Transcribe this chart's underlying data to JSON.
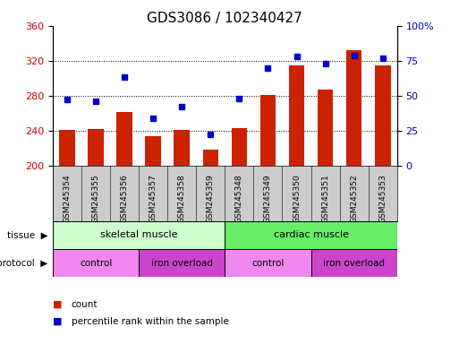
{
  "title": "GDS3086 / 102340427",
  "samples": [
    "GSM245354",
    "GSM245355",
    "GSM245356",
    "GSM245357",
    "GSM245358",
    "GSM245359",
    "GSM245348",
    "GSM245349",
    "GSM245350",
    "GSM245351",
    "GSM245352",
    "GSM245353"
  ],
  "counts": [
    241,
    242,
    261,
    233,
    241,
    218,
    243,
    281,
    315,
    287,
    332,
    315
  ],
  "percentiles": [
    47,
    46,
    63,
    34,
    42,
    22,
    48,
    70,
    78,
    73,
    79,
    77
  ],
  "bar_color": "#cc2200",
  "dot_color": "#0000cc",
  "left_ylim": [
    200,
    360
  ],
  "right_ylim": [
    0,
    100
  ],
  "left_yticks": [
    200,
    240,
    280,
    320,
    360
  ],
  "right_yticks": [
    0,
    25,
    50,
    75,
    100
  ],
  "right_yticklabels": [
    "0",
    "25",
    "50",
    "75",
    "100%"
  ],
  "tissue_labels": [
    "skeletal muscle",
    "cardiac muscle"
  ],
  "tissue_color_skel": "#ccffcc",
  "tissue_color_card": "#66ee66",
  "protocol_labels": [
    "control",
    "iron overload",
    "control",
    "iron overload"
  ],
  "protocol_ranges": [
    0,
    3,
    6,
    9,
    12
  ],
  "protocol_color_1": "#ee88ee",
  "protocol_color_2": "#cc44cc",
  "xtick_bg_color": "#cccccc",
  "background_color": "#ffffff",
  "title_fontsize": 11,
  "axis_label_color_left": "#cc0000",
  "axis_label_color_right": "#0000cc",
  "legend_square_size": 7,
  "bar_width": 0.55
}
